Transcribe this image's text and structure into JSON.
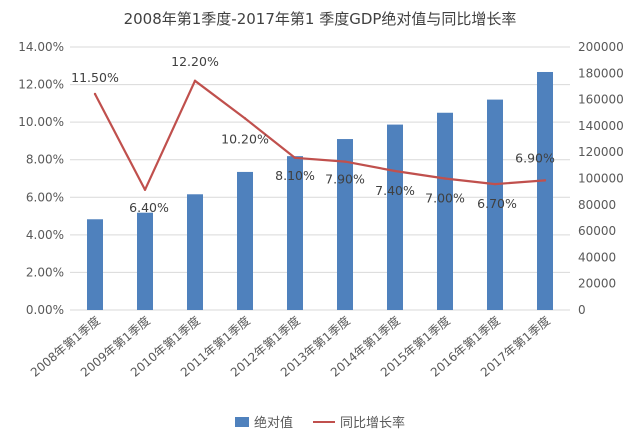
{
  "chart_data": {
    "type": "bar+line",
    "title": "2008年第1季度-2017年第1 季度GDP绝对值与同比增长率",
    "categories": [
      "2008年第1季度",
      "2009年第1季度",
      "2010年第1季度",
      "2011年第1季度",
      "2012年第1季度",
      "2013年第1季度",
      "2014年第1季度",
      "2015年第1季度",
      "2016年第1季度",
      "2017年第1季度"
    ],
    "series": [
      {
        "name": "绝对值",
        "type": "bar",
        "axis": "right",
        "color": "#4f81bd",
        "values": [
          69000,
          74000,
          88000,
          105000,
          117000,
          130000,
          141000,
          150000,
          160000,
          181000
        ]
      },
      {
        "name": "同比增长率",
        "type": "line",
        "axis": "left",
        "color": "#c0504d",
        "values": [
          11.5,
          6.4,
          12.2,
          10.2,
          8.1,
          7.9,
          7.4,
          7.0,
          6.7,
          6.9
        ],
        "data_labels": [
          "11.50%",
          "6.40%",
          "12.20%",
          "10.20%",
          "8.10%",
          "7.90%",
          "7.40%",
          "7.00%",
          "6.70%",
          "6.90%"
        ]
      }
    ],
    "y_left": {
      "ylim": [
        0,
        14
      ],
      "ticks": [
        "0.00%",
        "2.00%",
        "4.00%",
        "6.00%",
        "8.00%",
        "10.00%",
        "12.00%",
        "14.00%"
      ]
    },
    "y_right": {
      "ylim": [
        0,
        200000
      ],
      "ticks": [
        "0",
        "20000",
        "40000",
        "60000",
        "80000",
        "100000",
        "120000",
        "140000",
        "160000",
        "180000",
        "200000"
      ]
    },
    "grid": true,
    "legend": "bottom"
  }
}
